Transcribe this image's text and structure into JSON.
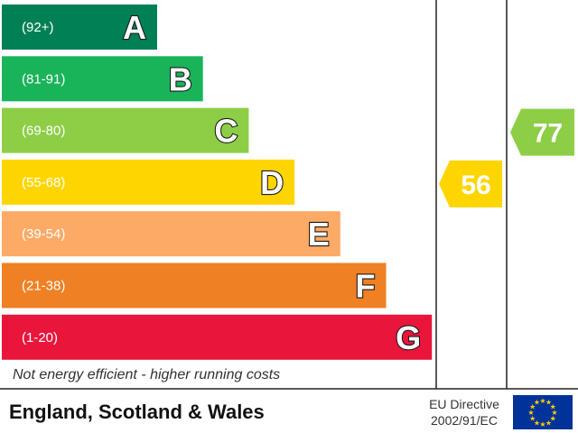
{
  "chart_data": {
    "type": "bar",
    "bands": [
      {
        "letter": "A",
        "range": "(92+)",
        "color": "#008054"
      },
      {
        "letter": "B",
        "range": "(81-91)",
        "color": "#19b459"
      },
      {
        "letter": "C",
        "range": "(69-80)",
        "color": "#8dce46"
      },
      {
        "letter": "D",
        "range": "(55-68)",
        "color": "#ffd500"
      },
      {
        "letter": "E",
        "range": "(39-54)",
        "color": "#fcaa65"
      },
      {
        "letter": "F",
        "range": "(21-38)",
        "color": "#ef8023"
      },
      {
        "letter": "G",
        "range": "(1-20)",
        "color": "#e9153b"
      }
    ],
    "ratings": [
      {
        "value": "56",
        "band": "D",
        "color": "#ffd500"
      },
      {
        "value": "77",
        "band": "C",
        "color": "#8dce46"
      }
    ],
    "footer_note": "Not energy efficient - higher running costs",
    "region": "England, Scotland & Wales",
    "directive_line1": "EU Directive",
    "directive_line2": "2002/91/EC"
  }
}
